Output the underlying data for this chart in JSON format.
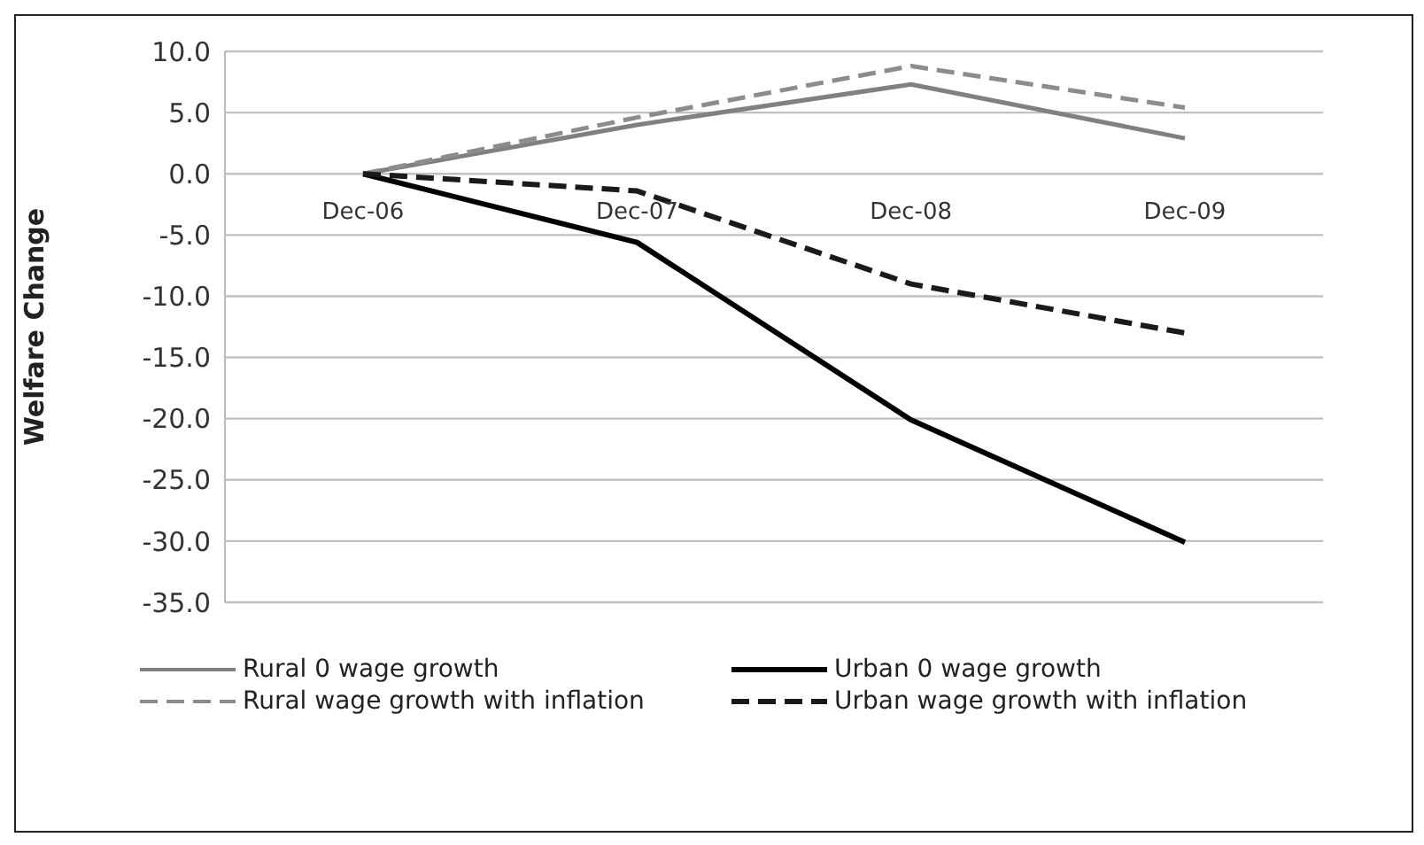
{
  "chart_data": {
    "type": "line",
    "ylabel": "Welfare Change",
    "categories": [
      "Dec-06",
      "Dec-07",
      "Dec-08",
      "Dec-09"
    ],
    "series": [
      {
        "name": "Rural 0 wage growth",
        "color": "#808080",
        "values": [
          0,
          4.0,
          7.3,
          2.9
        ],
        "line_style": "solid"
      },
      {
        "name": "Urban 0 wage growth",
        "color": "#000000",
        "values": [
          0,
          -5.6,
          -20.1,
          -30.1
        ],
        "line_style": "solid"
      },
      {
        "name": "Rural wage growth with inflation",
        "color": "#8c8c8c",
        "values": [
          0,
          4.6,
          8.8,
          5.4
        ],
        "line_style": "dashed"
      },
      {
        "name": "Urban wage growth with inflation",
        "color": "#1a1a1a",
        "values": [
          0,
          -1.4,
          -9.0,
          -13.0
        ],
        "line_style": "dashed"
      }
    ],
    "ylim": [
      -35,
      10
    ],
    "yticks": [
      {
        "value": 10,
        "label": "10.0"
      },
      {
        "value": 5,
        "label": "5.0"
      },
      {
        "value": 0,
        "label": "0.0"
      },
      {
        "value": -5,
        "label": "-5.0"
      },
      {
        "value": -10,
        "label": "-10.0"
      },
      {
        "value": -15,
        "label": "-15.0"
      },
      {
        "value": -20,
        "label": "-20.0"
      },
      {
        "value": -25,
        "label": "-25.0"
      },
      {
        "value": -30,
        "label": "-30.0"
      },
      {
        "value": -35,
        "label": "-35.0"
      }
    ],
    "grid": "y",
    "legend": "bottom",
    "marker": "none"
  }
}
